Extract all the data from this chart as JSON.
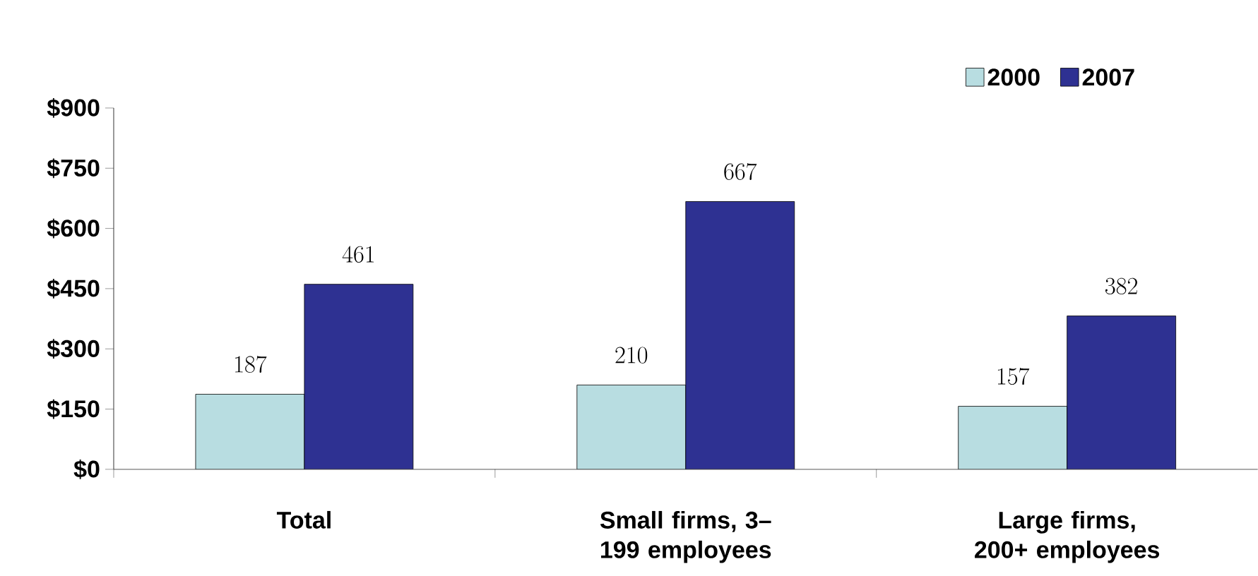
{
  "chart_data": {
    "type": "bar",
    "categories": [
      "Total",
      "Small firms, 3–199 employees",
      "Large firms, 200+ employees"
    ],
    "series": [
      {
        "name": "2000",
        "color": "#b8dde1",
        "values": [
          187,
          210,
          157
        ]
      },
      {
        "name": "2007",
        "color": "#2e3192",
        "values": [
          461,
          667,
          382
        ]
      }
    ],
    "ylim": [
      0,
      900
    ],
    "yticks": [
      {
        "value": 0,
        "label": "$0"
      },
      {
        "value": 150,
        "label": "$150"
      },
      {
        "value": 300,
        "label": "$300"
      },
      {
        "value": 450,
        "label": "$450"
      },
      {
        "value": 600,
        "label": "$600"
      },
      {
        "value": 750,
        "label": "$750"
      },
      {
        "value": 900,
        "label": "$900"
      }
    ],
    "data_labels": true,
    "legend": "top right",
    "grid": false
  }
}
